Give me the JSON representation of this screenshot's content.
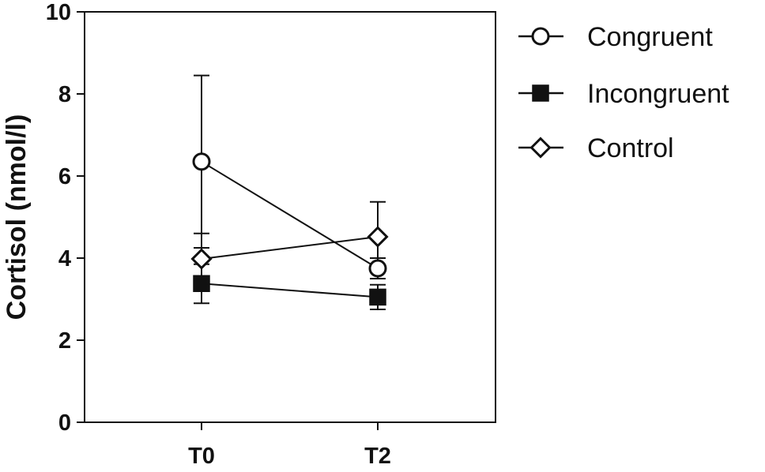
{
  "chart_data": {
    "type": "line",
    "title": "",
    "xlabel": "",
    "ylabel": "Cortisol (nmol/l)",
    "categories": [
      "T0",
      "T2"
    ],
    "ylim": [
      0,
      10
    ],
    "yticks": [
      0,
      2,
      4,
      6,
      8,
      10
    ],
    "grid": false,
    "legend_position": "right",
    "series": [
      {
        "name": "Congruent",
        "marker": "open-circle",
        "values": [
          6.35,
          3.75
        ],
        "error_upper": [
          8.45,
          4.0
        ],
        "error_lower": [
          4.25,
          3.5
        ]
      },
      {
        "name": "Incongruent",
        "marker": "filled-square",
        "values": [
          3.38,
          3.05
        ],
        "error_upper": [
          3.85,
          3.35
        ],
        "error_lower": [
          2.9,
          2.75
        ]
      },
      {
        "name": "Control",
        "marker": "open-diamond",
        "values": [
          3.98,
          4.52
        ],
        "error_upper": [
          4.6,
          5.37
        ],
        "error_lower": [
          3.4,
          3.7
        ]
      }
    ],
    "colors": {
      "line": "#111111",
      "marker_fill_open": "#ffffff",
      "marker_fill_solid": "#111111"
    }
  }
}
